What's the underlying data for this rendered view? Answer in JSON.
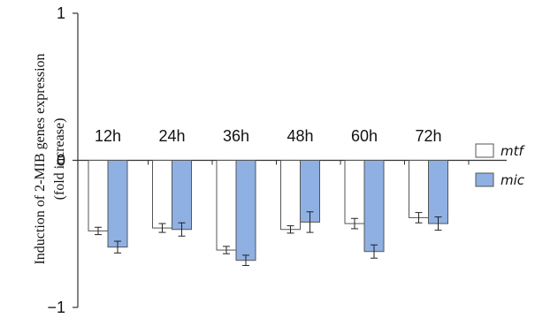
{
  "chart_data": {
    "type": "bar",
    "categories": [
      "12h",
      "24h",
      "36h",
      "48h",
      "60h",
      "72h"
    ],
    "series": [
      {
        "name": "mtf",
        "color": "#ffffff",
        "values": [
          -0.48,
          -0.46,
          -0.61,
          -0.47,
          -0.43,
          -0.39
        ],
        "errors": [
          0.025,
          0.03,
          0.025,
          0.025,
          0.035,
          0.035
        ]
      },
      {
        "name": "mic",
        "color": "#8fb0e2",
        "values": [
          -0.59,
          -0.47,
          -0.68,
          -0.42,
          -0.62,
          -0.43
        ],
        "errors": [
          0.04,
          0.045,
          0.035,
          0.07,
          0.045,
          0.045
        ]
      }
    ],
    "ylabel_line1": "Induction of 2-MIB genes expression",
    "ylabel_line2": "(fold increase)",
    "ylim": [
      -1,
      1
    ],
    "yticks": [
      "1",
      "0",
      "−1"
    ],
    "ytick_values": [
      1,
      0,
      -1
    ],
    "legend_position": "right",
    "grid": false
  }
}
